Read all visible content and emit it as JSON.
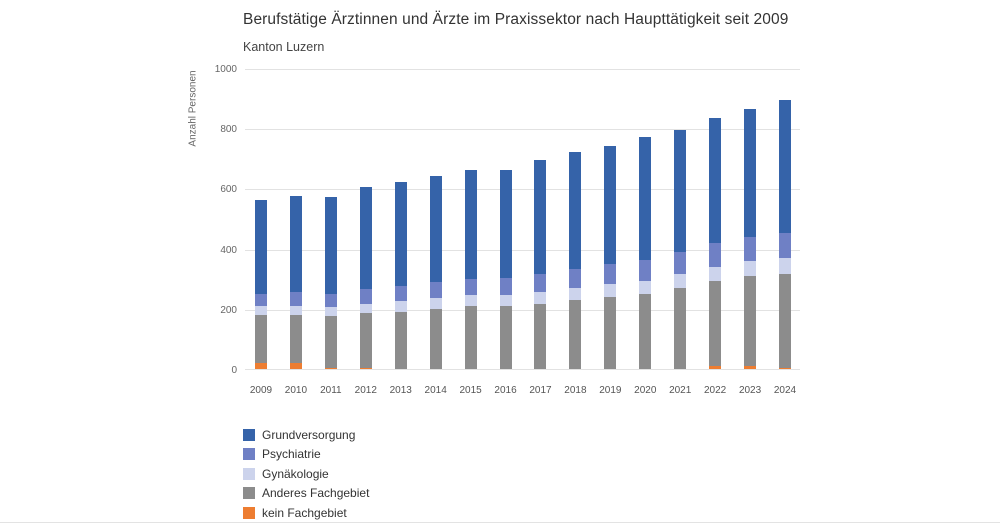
{
  "page": {
    "background": "#ffffff"
  },
  "chart_data": {
    "type": "bar",
    "stacked": true,
    "title": "Berufstätige Ärztinnen und Ärzte im Praxissektor nach Haupttätigkeit seit 2009",
    "subtitle": "Kanton Luzern",
    "ylabel": "Anzahl Personen",
    "xlabel": "",
    "ylim": [
      0,
      1000
    ],
    "yticks": [
      0,
      200,
      400,
      600,
      800,
      1000
    ],
    "grid": "horizontal",
    "legend_position": "bottom-left",
    "categories": [
      "2009",
      "2010",
      "2011",
      "2012",
      "2013",
      "2014",
      "2015",
      "2016",
      "2017",
      "2018",
      "2019",
      "2020",
      "2021",
      "2022",
      "2023",
      "2024"
    ],
    "series": [
      {
        "name": "Grundversorgung",
        "color": "#3563a9",
        "values": [
          310,
          320,
          320,
          340,
          345,
          350,
          360,
          360,
          380,
          389,
          390,
          407,
          405,
          417,
          425,
          440
        ]
      },
      {
        "name": "Psychiatrie",
        "color": "#6f80c5",
        "values": [
          40,
          45,
          45,
          50,
          50,
          55,
          55,
          55,
          60,
          65,
          68,
          70,
          75,
          78,
          80,
          83
        ]
      },
      {
        "name": "Gynäkologie",
        "color": "#ccd3ec",
        "values": [
          30,
          30,
          30,
          30,
          35,
          35,
          35,
          37,
          40,
          40,
          42,
          45,
          45,
          48,
          50,
          55
        ]
      },
      {
        "name": "Anderes Fachgebiet",
        "color": "#8c8c8c",
        "values": [
          160,
          160,
          170,
          180,
          190,
          200,
          210,
          210,
          215,
          228,
          240,
          248,
          270,
          282,
          300,
          310
        ]
      },
      {
        "name": "kein Fachgebiet",
        "color": "#ed7d31",
        "values": [
          20,
          20,
          5,
          5,
          0,
          0,
          0,
          0,
          0,
          0,
          0,
          0,
          0,
          10,
          10,
          5
        ]
      }
    ],
    "totals": [
      560,
      575,
      570,
      605,
      620,
      640,
      660,
      662,
      695,
      722,
      740,
      770,
      795,
      835,
      865,
      893
    ],
    "stack_order_bottom_to_top": [
      "kein Fachgebiet",
      "Anderes Fachgebiet",
      "Gynäkologie",
      "Psychiatrie",
      "Grundversorgung"
    ]
  }
}
